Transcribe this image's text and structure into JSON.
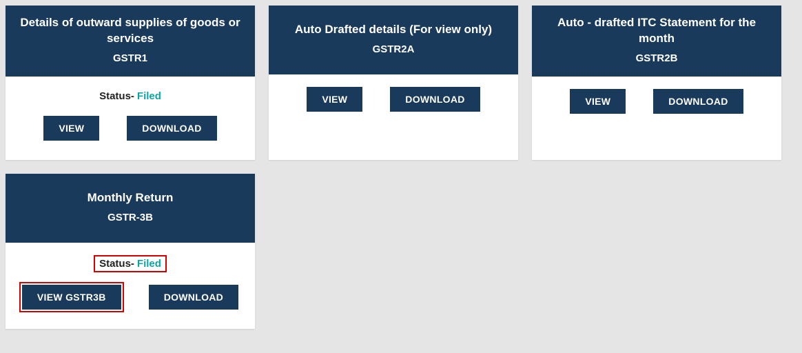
{
  "cards": [
    {
      "title": "Details of outward supplies of goods or services",
      "subtitle": "GSTR1",
      "status_label": "Status-",
      "status_value": "Filed",
      "show_status": true,
      "status_highlight": false,
      "buttons": [
        {
          "label": "VIEW",
          "highlight": false
        },
        {
          "label": "DOWNLOAD",
          "highlight": false
        }
      ]
    },
    {
      "title": "Auto Drafted details (For view only)",
      "subtitle": "GSTR2A",
      "show_status": false,
      "buttons": [
        {
          "label": "VIEW",
          "highlight": false
        },
        {
          "label": "DOWNLOAD",
          "highlight": false
        }
      ]
    },
    {
      "title": "Auto - drafted ITC Statement for the month",
      "subtitle": "GSTR2B",
      "show_status": false,
      "buttons": [
        {
          "label": "VIEW",
          "highlight": false
        },
        {
          "label": "DOWNLOAD",
          "highlight": false
        }
      ]
    },
    {
      "title": "Monthly Return",
      "subtitle": "GSTR-3B",
      "status_label": "Status-",
      "status_value": "Filed",
      "show_status": true,
      "status_highlight": true,
      "buttons": [
        {
          "label": "VIEW GSTR3B",
          "highlight": true
        },
        {
          "label": "DOWNLOAD",
          "highlight": false
        }
      ]
    }
  ]
}
